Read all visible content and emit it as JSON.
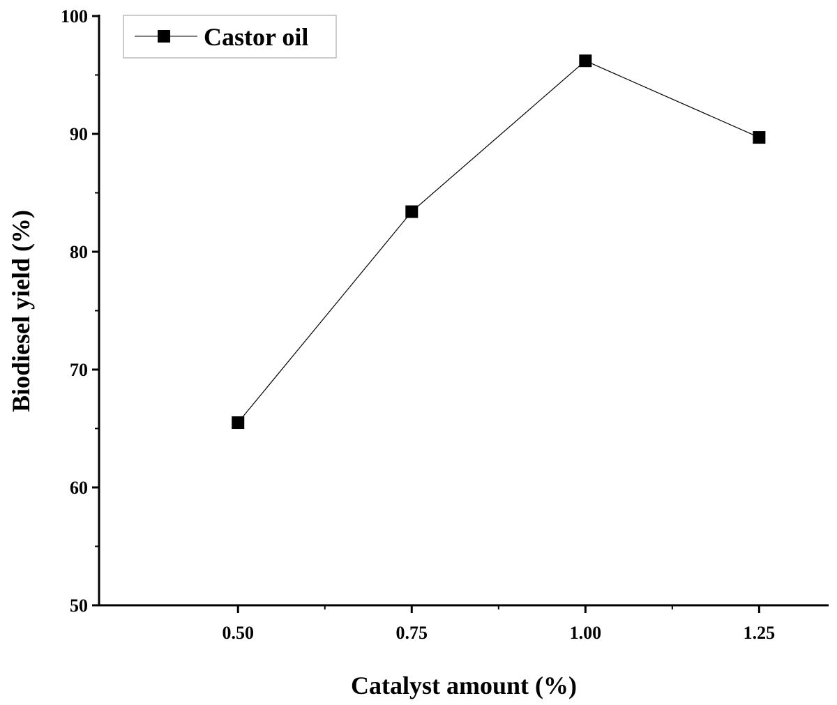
{
  "chart_data": {
    "type": "line",
    "x": [
      0.5,
      0.75,
      1.0,
      1.25
    ],
    "x_tick_labels": [
      "0.50",
      "0.75",
      "1.00",
      "1.25"
    ],
    "series": [
      {
        "name": "Castor oil",
        "values": [
          65.5,
          83.4,
          96.2,
          89.7
        ],
        "color": "#000000",
        "marker": "square"
      }
    ],
    "xlabel": "Catalyst amount (%)",
    "ylabel": "Biodiesel yield (%)",
    "xlim": [
      0.3,
      1.35
    ],
    "ylim": [
      50,
      100
    ],
    "y_ticks": [
      50,
      60,
      70,
      80,
      90,
      100
    ],
    "grid": false,
    "legend_position": "top-left"
  }
}
